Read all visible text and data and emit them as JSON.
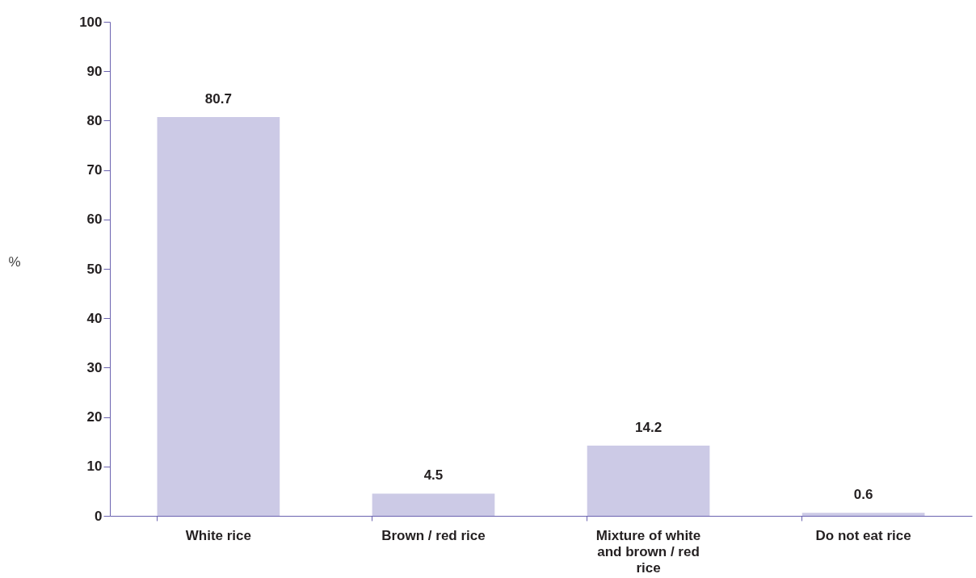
{
  "chart_data": {
    "type": "bar",
    "categories": [
      "White rice",
      "Brown / red rice",
      "Mixture of white and brown / red rice",
      "Do not eat rice"
    ],
    "values": [
      80.7,
      4.5,
      14.2,
      0.6
    ],
    "color": "#cccae6",
    "ylabel": "%",
    "ylim": [
      0,
      100
    ],
    "yticks": [
      0,
      10,
      20,
      30,
      40,
      50,
      60,
      70,
      80,
      90,
      100
    ],
    "data_labels": true,
    "grid": false
  }
}
